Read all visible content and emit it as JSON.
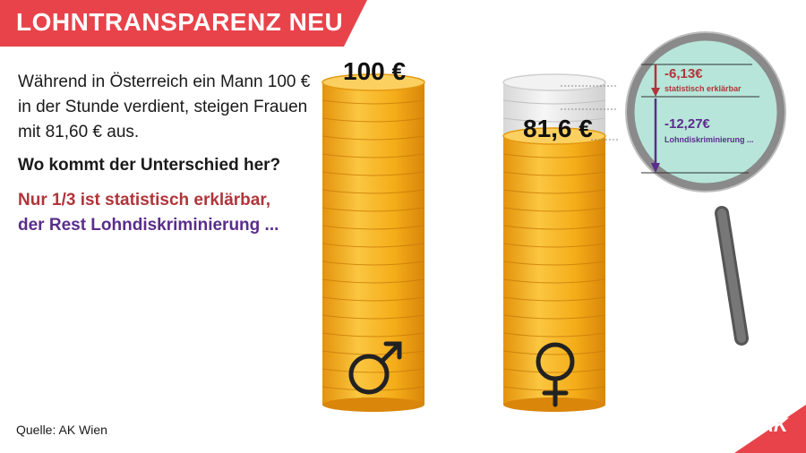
{
  "header": {
    "title": "LOHNTRANSPARENZ NEU"
  },
  "text": {
    "intro": "Während in Österreich ein Mann 100 € in der Stunde verdient, steigen Frauen mit 81,60 € aus.",
    "question": "Wo kommt der Unterschied her?",
    "claim_line1": "Nur 1/3 ist statistisch erklärbar,",
    "claim_line2": "der Rest Lohndiskriminierung ..."
  },
  "stacks": {
    "male": {
      "label": "100 €",
      "icon": "male-symbol-icon"
    },
    "female": {
      "label": "81,6 €",
      "icon": "female-symbol-icon"
    }
  },
  "magnifier": {
    "explained_value": "-6,13€",
    "explained_label": "statistisch erklärbar",
    "discrimination_value": "-12,27€",
    "discrimination_label": "Lohndiskriminierung ..."
  },
  "footer": {
    "source": "Quelle: AK Wien",
    "logo": "AK"
  },
  "colors": {
    "banner": "#e8434a",
    "coin": "#f6b21a",
    "explained": "#b0353a",
    "discrimination": "#5a2d8c",
    "lens_tint": "#9fdccc"
  }
}
